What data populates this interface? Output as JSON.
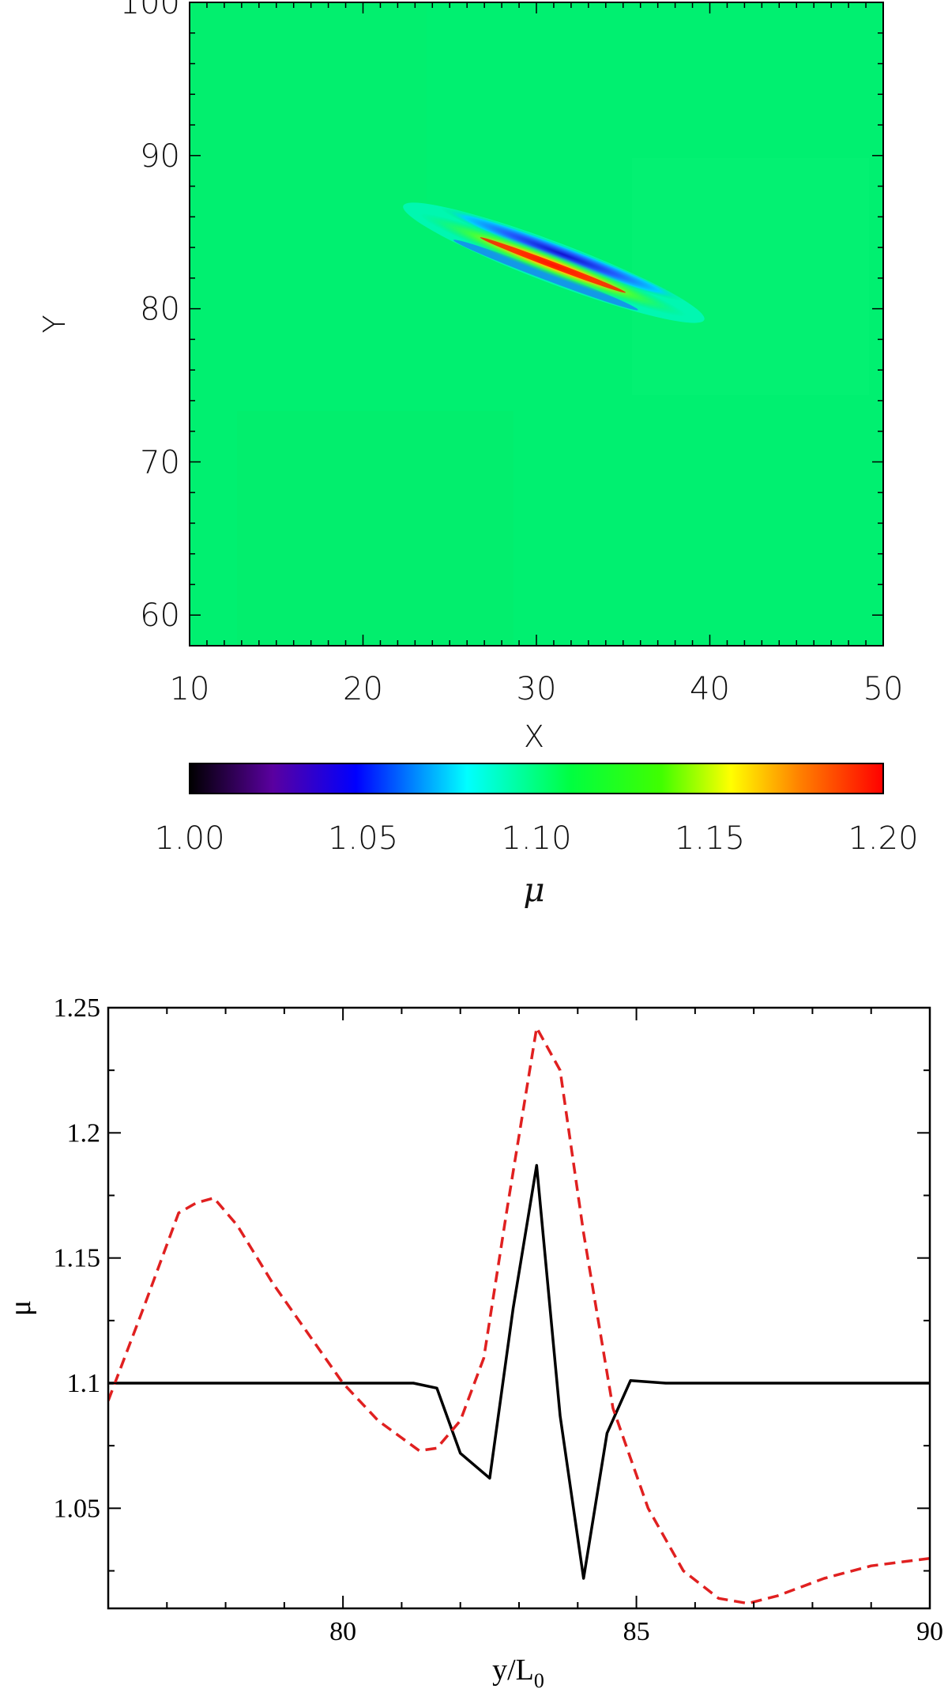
{
  "chart_data": [
    {
      "type": "heatmap",
      "xlabel": "X",
      "ylabel": "Y",
      "xlim": [
        10,
        50
      ],
      "ylim": [
        58,
        100
      ],
      "xticks": [
        "10",
        "20",
        "30",
        "40",
        "50"
      ],
      "yticks": [
        "60",
        "70",
        "80",
        "90",
        "100"
      ],
      "background_value": 1.11,
      "feature": {
        "description_values": "elongated tilted band",
        "center": [
          31,
          83
        ],
        "from": [
          24,
          86
        ],
        "to": [
          38,
          80
        ],
        "min_value": 1.05,
        "max_value": 1.2
      },
      "colorbar": {
        "label": "μ",
        "range": [
          1.0,
          1.2
        ],
        "ticks": [
          "1.00",
          "1.05",
          "1.10",
          "1.15",
          "1.20"
        ],
        "colormap": [
          "#000000",
          "#5a00a0",
          "#0000ff",
          "#00ffff",
          "#00ff00",
          "#ffff00",
          "#ff8000",
          "#ff0000"
        ]
      }
    },
    {
      "type": "line",
      "xlabel": "y/L",
      "xlabel_sub": "0",
      "ylabel": "μ",
      "xlim": [
        76,
        90
      ],
      "ylim": [
        1.01,
        1.25
      ],
      "xticks": [
        "80",
        "85",
        "90"
      ],
      "yticks": [
        "1.05",
        "1.1",
        "1.15",
        "1.2",
        "1.25"
      ],
      "series": [
        {
          "color": "#000000",
          "style": "solid",
          "x": [
            76,
            78,
            80,
            81.2,
            81.6,
            82.0,
            82.5,
            82.9,
            83.3,
            83.7,
            84.1,
            84.5,
            84.9,
            85.5,
            87,
            90
          ],
          "y": [
            1.1,
            1.1,
            1.1,
            1.1,
            1.098,
            1.072,
            1.062,
            1.13,
            1.187,
            1.087,
            1.022,
            1.08,
            1.101,
            1.1,
            1.1,
            1.1
          ]
        },
        {
          "color": "#e02020",
          "style": "dashed",
          "x": [
            76,
            76.6,
            77.2,
            77.5,
            77.8,
            78.2,
            78.8,
            79.4,
            80,
            80.6,
            81.3,
            81.6,
            82.0,
            82.4,
            82.8,
            83.3,
            83.7,
            84.1,
            84.6,
            85.2,
            85.8,
            86.4,
            86.9,
            87.4,
            88.2,
            89,
            90
          ],
          "y": [
            1.093,
            1.13,
            1.168,
            1.172,
            1.174,
            1.163,
            1.14,
            1.12,
            1.1,
            1.085,
            1.073,
            1.074,
            1.085,
            1.11,
            1.17,
            1.242,
            1.225,
            1.16,
            1.09,
            1.05,
            1.025,
            1.014,
            1.012,
            1.015,
            1.022,
            1.027,
            1.03
          ]
        }
      ]
    }
  ]
}
